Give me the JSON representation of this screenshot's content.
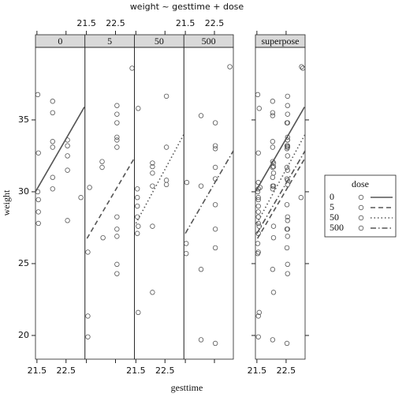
{
  "chart_data": {
    "type": "scatter",
    "title": "weight ~ gesttime + dose",
    "x_label": "gesttime",
    "y_label": "weight",
    "xlim": [
      21.45,
      23.15
    ],
    "ylim": [
      18.35,
      40.05
    ],
    "xticks": [
      21.5,
      22.5
    ],
    "yticks": [
      20,
      25,
      30,
      35
    ],
    "superpose_label": "superpose",
    "legend_title": "dose",
    "series": [
      {
        "name": "0",
        "color": "#555555",
        "line_style": "solid",
        "x": [
          21.53,
          21.55,
          21.53,
          21.55,
          21.55,
          21.55,
          22.04,
          22.04,
          22.04,
          22.04,
          22.04,
          22.04,
          22.55,
          22.55,
          22.55,
          22.55,
          22.55,
          23.01
        ],
        "y": [
          36.76,
          32.7,
          30.0,
          29.45,
          28.6,
          27.8,
          36.3,
          35.5,
          33.5,
          33.1,
          31.0,
          30.2,
          33.6,
          33.2,
          32.5,
          31.5,
          28.0,
          29.6
        ],
        "fit": {
          "x": [
            21.45,
            23.13
          ],
          "y": [
            30.0,
            35.9
          ]
        }
      },
      {
        "name": "5",
        "color": "#555555",
        "line_style": "dashed",
        "x": [
          21.61,
          21.55,
          21.55,
          21.55,
          22.04,
          22.04,
          22.07,
          22.55,
          22.55,
          22.55,
          22.55,
          22.55,
          22.55,
          22.55,
          22.55,
          22.55,
          22.55,
          22.55,
          23.07
        ],
        "y": [
          30.3,
          25.8,
          21.35,
          19.9,
          32.1,
          31.7,
          26.8,
          36.0,
          35.4,
          34.8,
          33.8,
          33.6,
          33.1,
          28.25,
          27.4,
          26.9,
          24.95,
          24.3,
          38.6
        ],
        "fit": {
          "x": [
            21.52,
            23.15
          ],
          "y": [
            26.75,
            32.35
          ]
        }
      },
      {
        "name": "50",
        "color": "#555555",
        "line_style": "dotted",
        "x": [
          21.58,
          21.55,
          21.55,
          21.55,
          21.55,
          21.58,
          21.55,
          21.58,
          22.07,
          22.07,
          22.07,
          22.07,
          22.07,
          22.07,
          22.55,
          22.55,
          22.55,
          22.55
        ],
        "y": [
          35.8,
          30.2,
          29.6,
          29.0,
          28.25,
          27.6,
          27.1,
          21.6,
          32.0,
          31.75,
          31.3,
          30.4,
          27.6,
          23.0,
          36.65,
          33.1,
          30.8,
          30.5
        ],
        "fit": {
          "x": [
            21.5,
            23.15
          ],
          "y": [
            27.8,
            34.0
          ]
        }
      },
      {
        "name": "500",
        "color": "#555555",
        "line_style": "dashdot",
        "x": [
          21.55,
          21.53,
          21.53,
          22.04,
          22.04,
          22.04,
          22.04,
          22.53,
          22.53,
          22.53,
          22.53,
          22.53,
          22.53,
          22.53,
          22.53,
          22.53,
          23.03
        ],
        "y": [
          30.65,
          26.4,
          25.7,
          35.3,
          30.4,
          24.6,
          19.7,
          33.0,
          34.8,
          33.2,
          31.7,
          30.9,
          29.1,
          27.4,
          26.1,
          19.45,
          38.7
        ],
        "fit": {
          "x": [
            21.5,
            23.15
          ],
          "y": [
            27.1,
            32.85
          ]
        }
      }
    ]
  }
}
